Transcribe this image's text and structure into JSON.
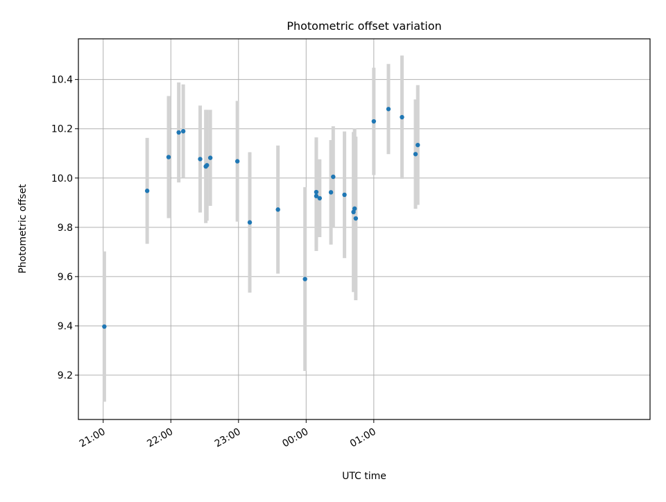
{
  "chart_data": {
    "type": "scatter",
    "title": "Photometric offset variation",
    "xlabel": "UTC time",
    "ylabel": "Photometric offset",
    "x_ticks": [
      "21:00",
      "22:00",
      "23:00",
      "00:00",
      "01:00"
    ],
    "y_ticks": [
      "9.2",
      "9.4",
      "9.6",
      "9.8",
      "10.0",
      "10.2",
      "10.4"
    ],
    "xlim_minutes_from_2100": [
      -22,
      485
    ],
    "ylim": [
      9.02,
      10.565
    ],
    "grid": true,
    "points": [
      {
        "time": "21:01",
        "y": 9.397,
        "err": 0.305
      },
      {
        "time": "21:39",
        "y": 9.948,
        "err": 0.215
      },
      {
        "time": "21:58",
        "y": 10.085,
        "err": 0.248
      },
      {
        "time": "22:07",
        "y": 10.185,
        "err": 0.203
      },
      {
        "time": "22:11",
        "y": 10.19,
        "err": 0.19
      },
      {
        "time": "22:26",
        "y": 10.077,
        "err": 0.217
      },
      {
        "time": "22:31",
        "y": 10.047,
        "err": 0.23
      },
      {
        "time": "22:32",
        "y": 10.052,
        "err": 0.225
      },
      {
        "time": "22:35",
        "y": 10.082,
        "err": 0.195
      },
      {
        "time": "22:59",
        "y": 10.068,
        "err": 0.245
      },
      {
        "time": "23:10",
        "y": 9.82,
        "err": 0.285
      },
      {
        "time": "23:35",
        "y": 9.872,
        "err": 0.26
      },
      {
        "time": "23:59",
        "y": 9.59,
        "err": 0.373
      },
      {
        "time": "00:09",
        "y": 9.943,
        "err": 0.222
      },
      {
        "time": "00:09",
        "y": 9.927,
        "err": 0.223
      },
      {
        "time": "00:12",
        "y": 9.918,
        "err": 0.158
      },
      {
        "time": "00:22",
        "y": 9.942,
        "err": 0.212
      },
      {
        "time": "00:24",
        "y": 10.005,
        "err": 0.205
      },
      {
        "time": "00:34",
        "y": 9.932,
        "err": 0.257
      },
      {
        "time": "00:42",
        "y": 9.862,
        "err": 0.325
      },
      {
        "time": "00:43",
        "y": 9.876,
        "err": 0.325
      },
      {
        "time": "00:44",
        "y": 9.836,
        "err": 0.332
      },
      {
        "time": "01:00",
        "y": 10.23,
        "err": 0.218
      },
      {
        "time": "01:13",
        "y": 10.28,
        "err": 0.183
      },
      {
        "time": "01:25",
        "y": 10.247,
        "err": 0.25
      },
      {
        "time": "01:37",
        "y": 10.097,
        "err": 0.222
      },
      {
        "time": "01:39",
        "y": 10.134,
        "err": 0.243
      }
    ],
    "colors": {
      "point": "#1f77b4",
      "errorbar": "#d3d3d3",
      "grid": "#b0b0b0",
      "axes": "#000000"
    }
  }
}
